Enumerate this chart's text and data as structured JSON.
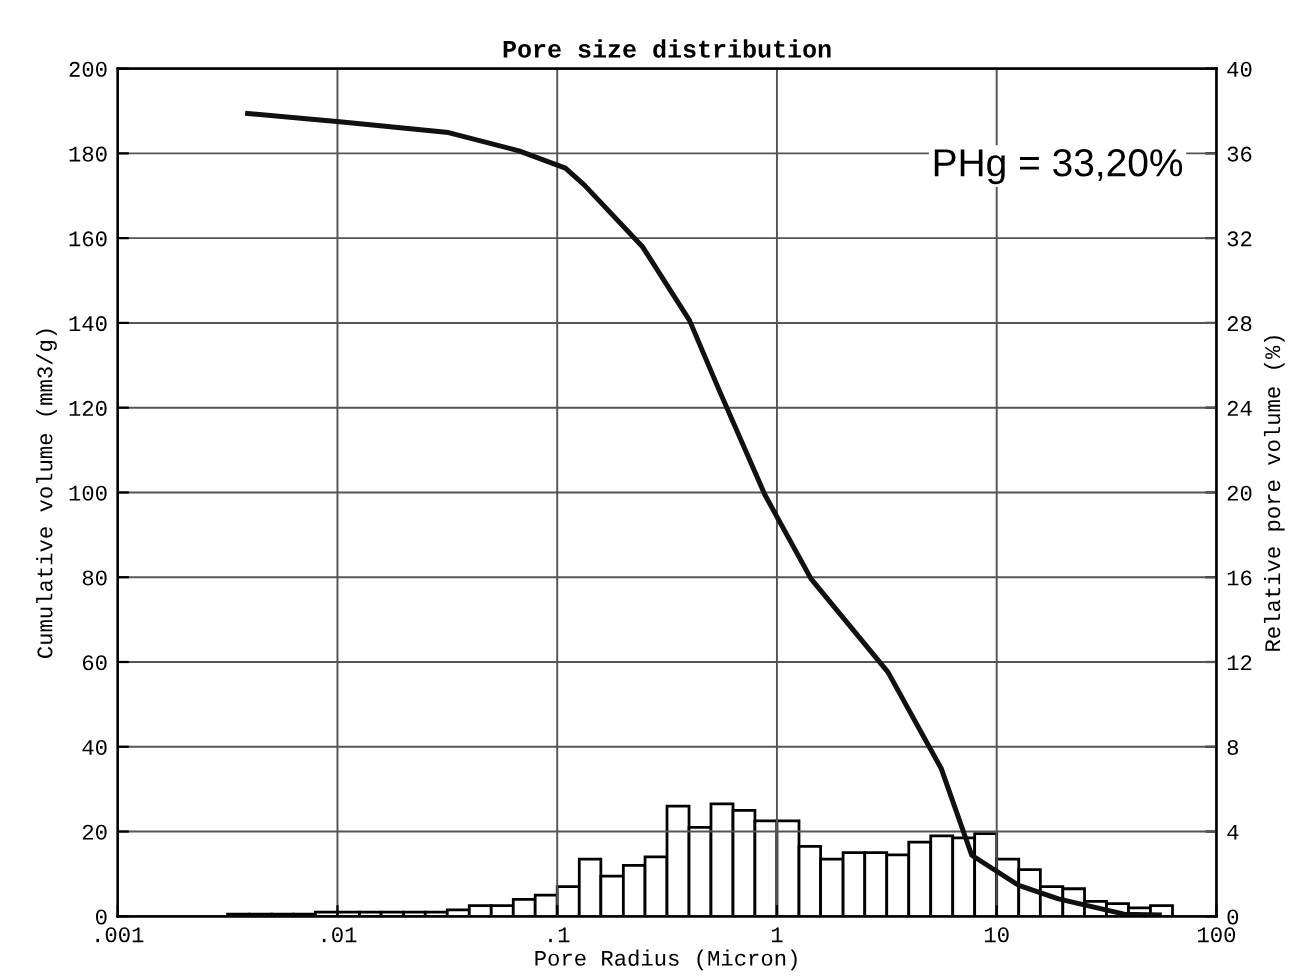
{
  "chart_data": {
    "type": "line",
    "title": "Pore size distribution",
    "xlabel": "Pore Radius (Micron)",
    "ylabel": "Cumulative volume (mm3/g)",
    "y2label": "Relative pore volume (%)",
    "log": "x",
    "grid": true,
    "legend": false,
    "xlim": [
      0.001,
      100
    ],
    "xticks": [
      {
        "value": 0.001,
        "label": ".001"
      },
      {
        "value": 0.01,
        "label": ".01"
      },
      {
        "value": 0.1,
        "label": ".1"
      },
      1,
      10,
      100
    ],
    "ylim": [
      0,
      200
    ],
    "yticks": [
      0,
      20,
      40,
      60,
      80,
      100,
      120,
      140,
      160,
      180,
      200
    ],
    "y2lim": [
      0,
      40
    ],
    "y2ticks": [
      0,
      4,
      8,
      12,
      16,
      20,
      24,
      28,
      32,
      36,
      40
    ],
    "annotations": [
      "PHg = 33,20%"
    ],
    "series": [
      {
        "type": "histogram",
        "axis": "y2",
        "color": "#ffffff",
        "bins": [
          0.00316,
          0.00398,
          0.00501,
          0.00631,
          0.00794,
          0.01,
          0.0126,
          0.0158,
          0.02,
          0.0251,
          0.0316,
          0.0398,
          0.0501,
          0.0631,
          0.0794,
          0.1,
          0.126,
          0.158,
          0.2,
          0.251,
          0.316,
          0.398,
          0.501,
          0.631,
          0.794,
          1,
          1.26,
          1.58,
          2,
          2.51,
          3.16,
          3.98,
          5.01,
          6.31,
          7.94,
          10,
          12.6,
          15.8,
          20,
          25.1,
          31.6,
          39.8,
          50.1,
          63.1
        ],
        "values": [
          0.1,
          0.1,
          0.1,
          0.1,
          0.2,
          0.2,
          0.2,
          0.2,
          0.2,
          0.2,
          0.3,
          0.5,
          0.5,
          0.8,
          1.0,
          1.4,
          2.7,
          1.9,
          2.4,
          2.8,
          5.2,
          4.2,
          5.3,
          5.0,
          4.5,
          4.5,
          3.3,
          2.7,
          3.0,
          3.0,
          2.9,
          3.5,
          3.8,
          3.7,
          3.9,
          2.7,
          2.2,
          1.4,
          1.3,
          0.7,
          0.6,
          0.4,
          0.5
        ]
      },
      {
        "color": "#111111",
        "x": [
          0.0039,
          0.0105,
          0.032,
          0.067,
          0.109,
          0.133,
          0.245,
          0.4,
          0.545,
          0.88,
          1.43,
          3.2,
          5.6,
          7.7,
          12.6,
          19.1,
          38,
          55
        ],
        "values": [
          189.4,
          187.4,
          184.9,
          180.6,
          176.5,
          172.5,
          157.9,
          140.6,
          124.2,
          99.5,
          79.6,
          57.6,
          34.8,
          14.4,
          7.3,
          4.1,
          0.5,
          0.3
        ]
      }
    ]
  }
}
